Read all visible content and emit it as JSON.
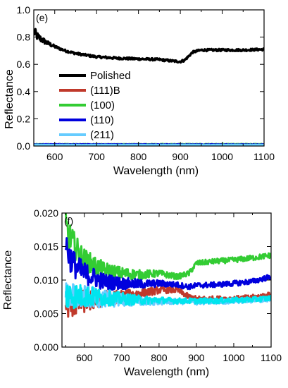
{
  "chart_data": [
    {
      "type": "line",
      "panel_label": "(e)",
      "xlabel": "Wavelength (nm)",
      "ylabel": "Reflectance",
      "xlim": [
        550,
        1100
      ],
      "ylim": [
        0,
        1.0
      ],
      "x_ticks": [
        600,
        700,
        800,
        900,
        1000,
        1100
      ],
      "y_ticks": [
        "0.0",
        "0.2",
        "0.4",
        "0.6",
        "0.8",
        "1.0"
      ],
      "legend_position": "left",
      "series": [
        {
          "name": "Polished",
          "color": "#000000",
          "x": [
            550,
            560,
            580,
            600,
            625,
            650,
            700,
            750,
            800,
            850,
            880,
            900,
            910,
            930,
            950,
            1000,
            1050,
            1100
          ],
          "y": [
            0.84,
            0.8,
            0.76,
            0.73,
            0.7,
            0.68,
            0.655,
            0.645,
            0.64,
            0.635,
            0.625,
            0.62,
            0.63,
            0.69,
            0.705,
            0.705,
            0.705,
            0.71
          ]
        },
        {
          "name": "(111)B",
          "color": "#c0392b",
          "x": [
            550,
            1100
          ],
          "y": [
            0.008,
            0.008
          ]
        },
        {
          "name": "(100)",
          "color": "#33cc33",
          "x": [
            550,
            1100
          ],
          "y": [
            0.012,
            0.013
          ]
        },
        {
          "name": "(110)",
          "color": "#0000dd",
          "x": [
            550,
            1100
          ],
          "y": [
            0.011,
            0.01
          ]
        },
        {
          "name": "(211)",
          "color": "#66ccff",
          "x": [
            550,
            1100
          ],
          "y": [
            0.007,
            0.007
          ]
        }
      ]
    },
    {
      "type": "line",
      "panel_label": "(f)",
      "xlabel": "Wavelength (nm)",
      "ylabel": "Reflectance",
      "xlim": [
        540,
        1100
      ],
      "ylim": [
        0,
        0.02
      ],
      "x_ticks": [
        600,
        700,
        800,
        900,
        1000,
        1100
      ],
      "y_ticks": [
        "0.000",
        "0.005",
        "0.010",
        "0.015",
        "0.020"
      ],
      "series": [
        {
          "color": "#33cc33",
          "x": [
            550,
            560,
            580,
            600,
            650,
            700,
            750,
            800,
            850,
            880,
            900,
            950,
            1000,
            1050,
            1100
          ],
          "y": [
            0.018,
            0.0165,
            0.0145,
            0.013,
            0.0115,
            0.011,
            0.0108,
            0.011,
            0.0105,
            0.011,
            0.0125,
            0.0128,
            0.013,
            0.0133,
            0.0137
          ]
        },
        {
          "color": "#c0392b",
          "x": [
            550,
            600,
            650,
            700,
            750,
            800,
            850,
            880,
            900,
            950,
            1000,
            1050,
            1100
          ],
          "y": [
            0.0062,
            0.0068,
            0.0072,
            0.0076,
            0.008,
            0.0085,
            0.0085,
            0.0075,
            0.0072,
            0.0072,
            0.0072,
            0.0074,
            0.0078
          ]
        },
        {
          "color": "#0000dd",
          "x": [
            550,
            560,
            580,
            600,
            650,
            700,
            750,
            800,
            850,
            880,
            900,
            950,
            1000,
            1050,
            1100
          ],
          "y": [
            0.0155,
            0.0135,
            0.0118,
            0.011,
            0.0098,
            0.0095,
            0.0094,
            0.0095,
            0.0093,
            0.009,
            0.0092,
            0.0093,
            0.0095,
            0.0098,
            0.0105
          ]
        },
        {
          "color": "#66ccff",
          "x": [
            550,
            600,
            650,
            700,
            750,
            800,
            850,
            900,
            950,
            1000,
            1050,
            1100
          ],
          "y": [
            0.0075,
            0.0075,
            0.0072,
            0.007,
            0.0068,
            0.0068,
            0.0068,
            0.0067,
            0.0068,
            0.0069,
            0.007,
            0.0072
          ]
        },
        {
          "color": "#00e5ee",
          "x": [
            550,
            600,
            650,
            700,
            750,
            800,
            850,
            900,
            950,
            1000,
            1050,
            1100
          ],
          "y": [
            0.0078,
            0.0076,
            0.0074,
            0.0072,
            0.007,
            0.007,
            0.0069,
            0.0069,
            0.0069,
            0.007,
            0.0071,
            0.0073
          ]
        }
      ]
    }
  ]
}
